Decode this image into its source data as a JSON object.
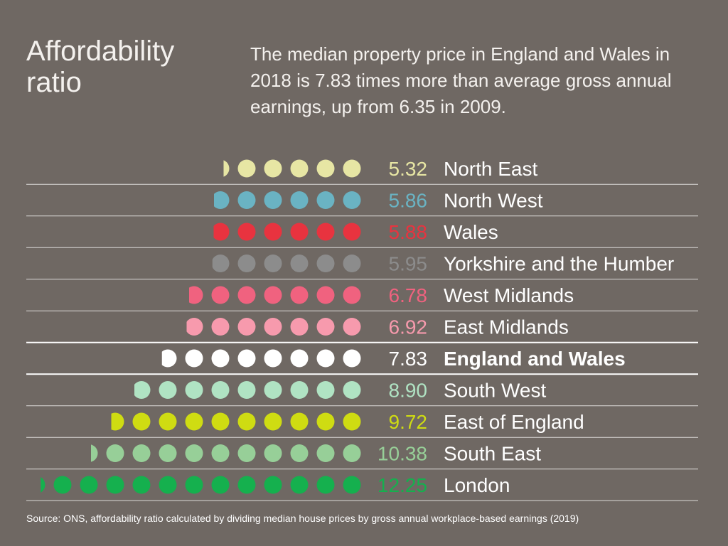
{
  "header": {
    "title": "Affordability ratio",
    "subtitle": "The median property price in England and Wales in 2018 is 7.83 times more than average gross annual earnings, up from 6.35 in 2009."
  },
  "chart_data": {
    "type": "pictogram-bar",
    "title": "Affordability ratio",
    "unit": "ratio of median house price to gross annual workplace-based earnings",
    "highlight": "England and Wales",
    "rows": [
      {
        "region": "North East",
        "value": 5.32,
        "label": "5.32",
        "color": "#e7e6a4"
      },
      {
        "region": "North West",
        "value": 5.86,
        "label": "5.86",
        "color": "#6ab3c3"
      },
      {
        "region": "Wales",
        "value": 5.88,
        "label": "5.88",
        "color": "#e8333f"
      },
      {
        "region": "Yorkshire and the Humber",
        "value": 5.95,
        "label": "5.95",
        "color": "#8c8c8c"
      },
      {
        "region": "West Midlands",
        "value": 6.78,
        "label": "6.78",
        "color": "#f0627f"
      },
      {
        "region": "East Midlands",
        "value": 6.92,
        "label": "6.92",
        "color": "#f79aad"
      },
      {
        "region": "England and Wales",
        "value": 7.83,
        "label": "7.83",
        "color": "#ffffff"
      },
      {
        "region": "South West",
        "value": 8.9,
        "label": "8.90",
        "color": "#b0e3c3"
      },
      {
        "region": "East of England",
        "value": 9.72,
        "label": "9.72",
        "color": "#cfdc12"
      },
      {
        "region": "South East",
        "value": 10.38,
        "label": "10.38",
        "color": "#97cf98"
      },
      {
        "region": "London",
        "value": 12.25,
        "label": "12.25",
        "color": "#15b04e"
      }
    ]
  },
  "footer": {
    "source": "Source: ONS, affordability ratio calculated by dividing median house prices by gross annual workplace-based earnings (2019)"
  },
  "colors": {
    "background": "#6f6863",
    "divider": "#ffffff"
  }
}
